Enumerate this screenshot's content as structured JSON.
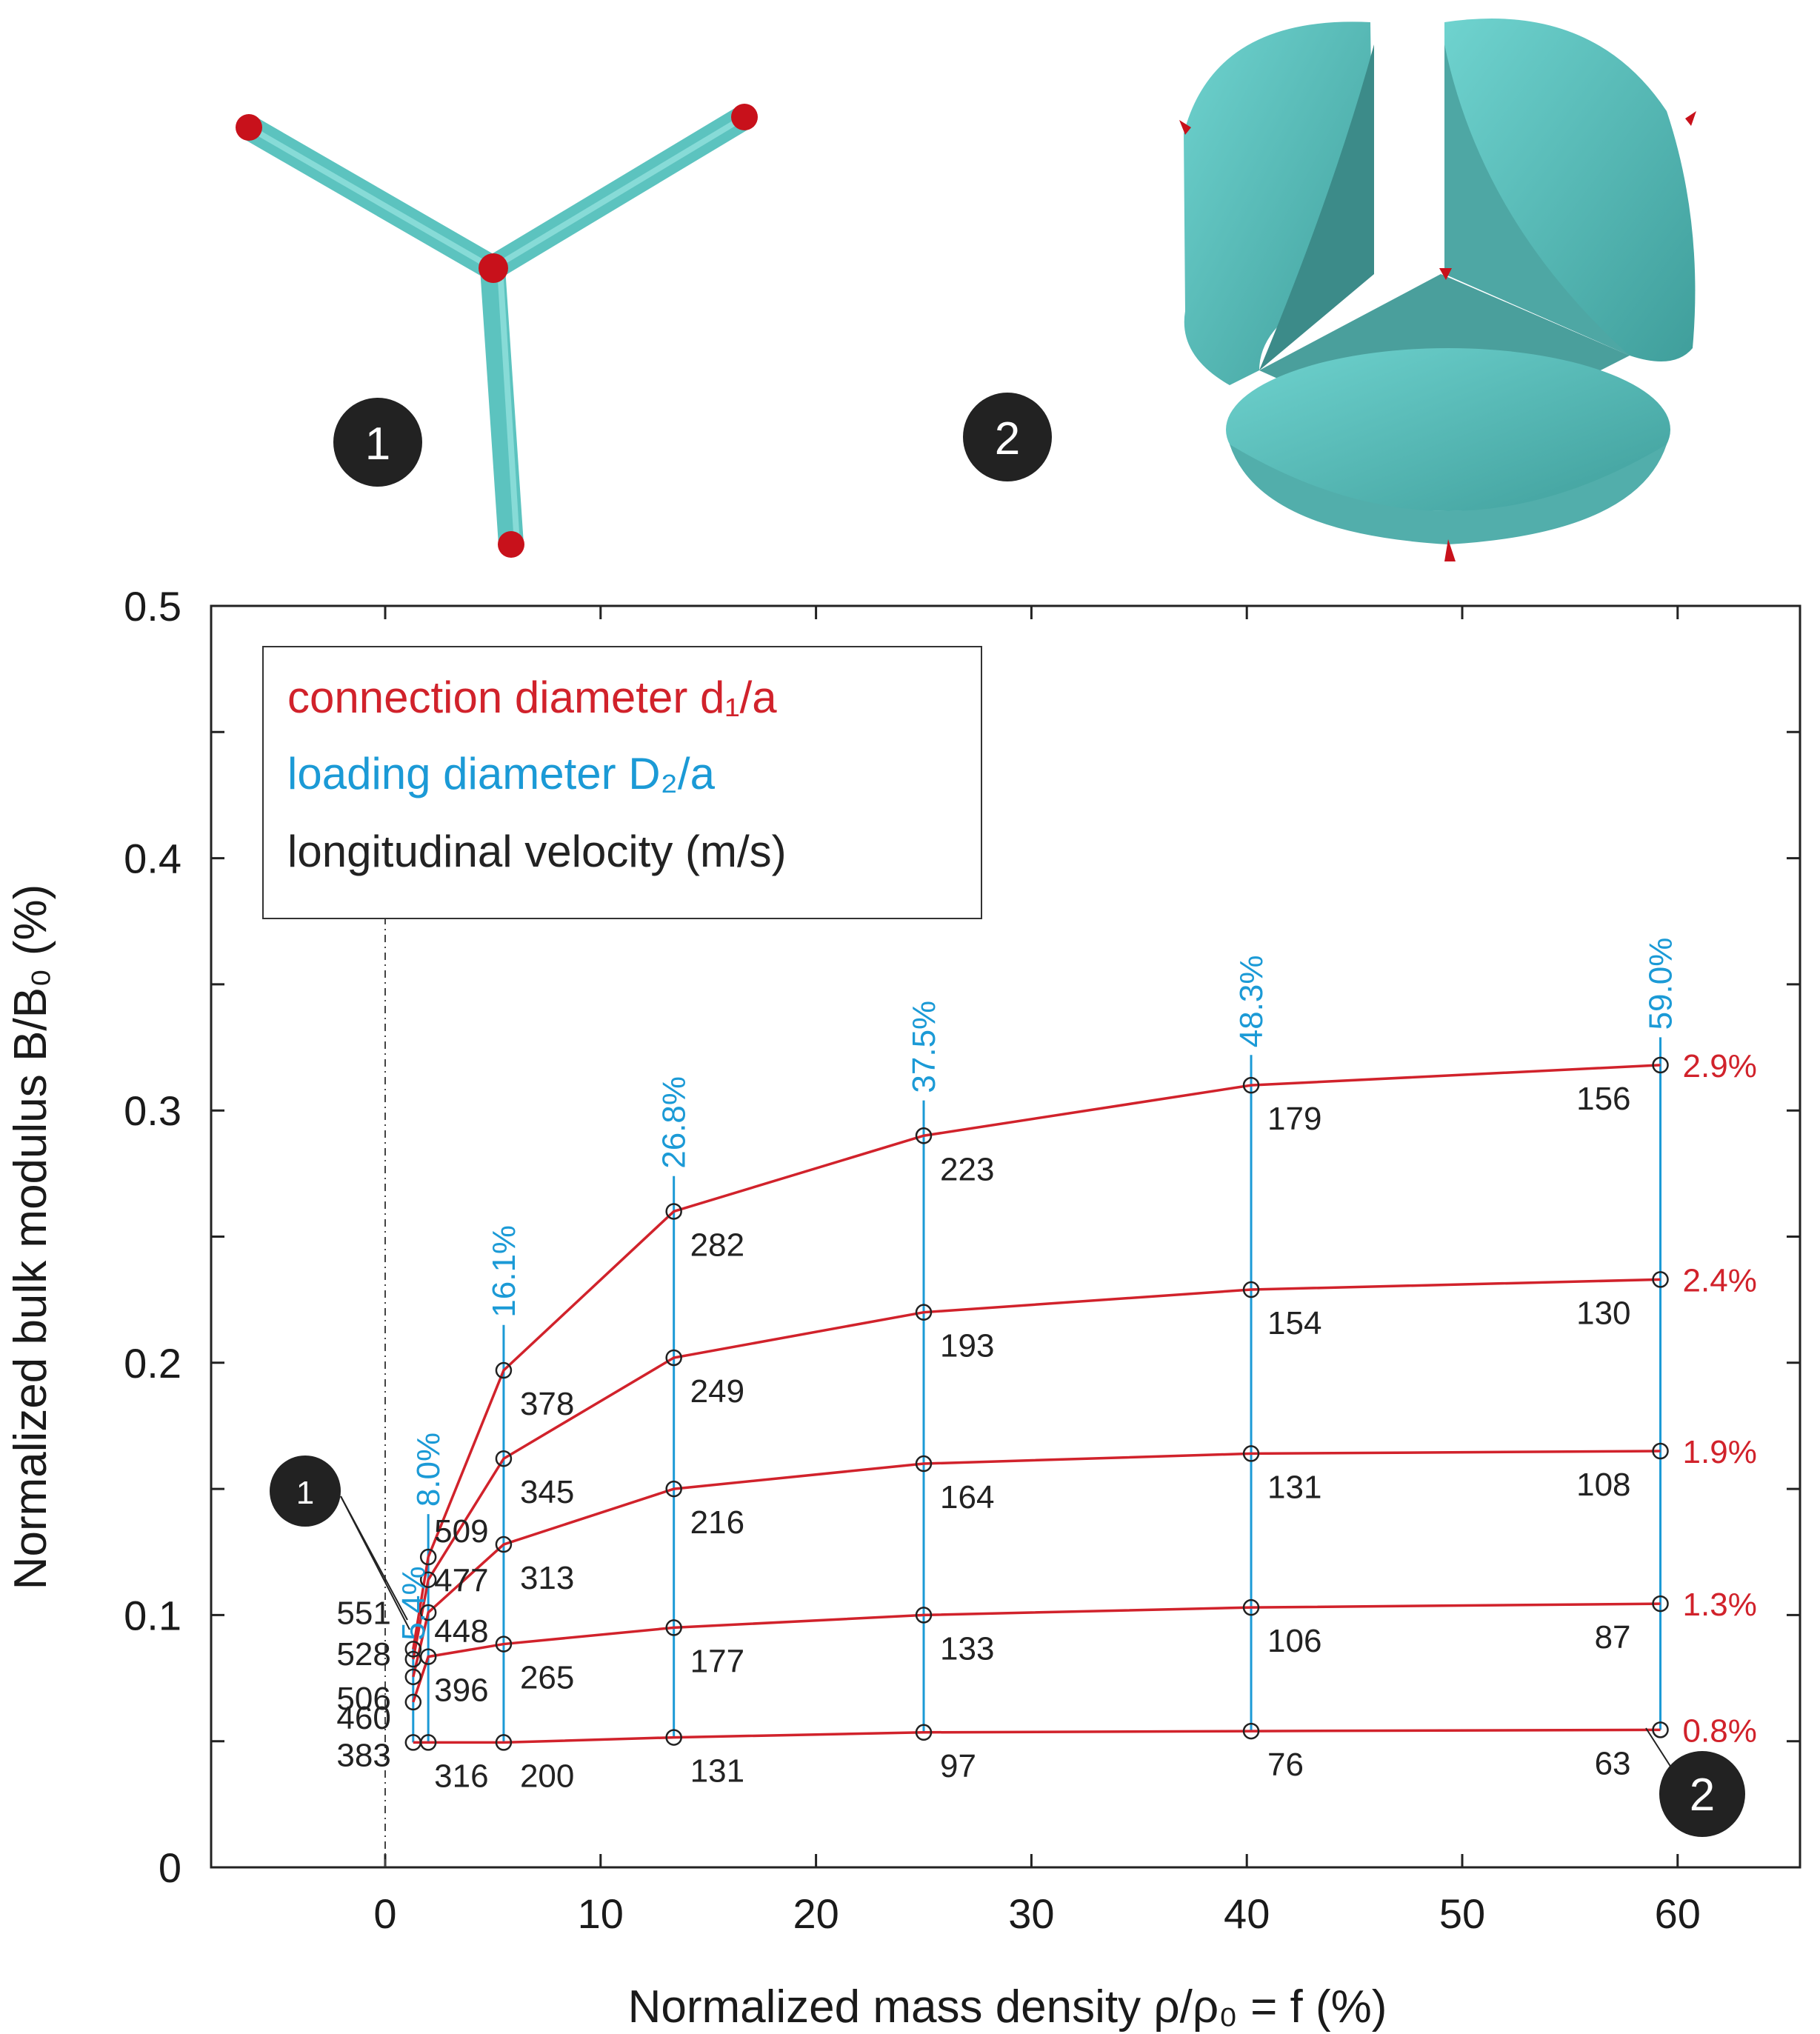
{
  "chart_data": {
    "type": "line",
    "xlabel": "Normalized mass density ρ/ρ₀ = f (%)",
    "ylabel": "Normalized bulk modulus  B/B₀ (%)",
    "xlim": [
      -8,
      66
    ],
    "ylim": [
      0,
      0.5
    ],
    "x_ticks": [
      "0",
      "10",
      "20",
      "30",
      "40",
      "50",
      "60"
    ],
    "y_ticks": [
      "0",
      "0.1",
      "0.2",
      "0.3",
      "0.4",
      "0.5"
    ],
    "legend": {
      "position": "top-left",
      "entries": [
        {
          "text": "connection diameter d₁/a",
          "color": "#d1222b"
        },
        {
          "text": "loading diameter D₂/a",
          "color": "#1b9ad6"
        },
        {
          "text": "longitudinal velocity (m/s)",
          "color": "#222222"
        }
      ]
    },
    "loading_diameters": [
      {
        "label": "5.4%",
        "x": 1.3,
        "y_top": 0.087
      },
      {
        "label": "8.0%",
        "x": 2.0,
        "y_top": 0.14
      },
      {
        "label": "16.1%",
        "x": 5.5,
        "y_top": 0.215
      },
      {
        "label": "26.8%",
        "x": 13.4,
        "y_top": 0.274
      },
      {
        "label": "37.5%",
        "x": 25.0,
        "y_top": 0.304
      },
      {
        "label": "48.3%",
        "x": 40.2,
        "y_top": 0.322
      },
      {
        "label": "59.0%",
        "x": 59.2,
        "y_top": 0.329
      }
    ],
    "x": [
      1.3,
      2.0,
      5.5,
      13.4,
      25.0,
      40.2,
      59.2
    ],
    "series": [
      {
        "name": "2.9%",
        "y": [
          0.0865,
          0.123,
          0.197,
          0.26,
          0.29,
          0.31,
          0.318
        ],
        "velocity": [
          "551",
          "509",
          "378",
          "282",
          "223",
          "179",
          "156"
        ]
      },
      {
        "name": "2.4%",
        "y": [
          0.0825,
          0.114,
          0.162,
          0.202,
          0.22,
          0.229,
          0.233
        ],
        "velocity": [
          "528",
          "477",
          "345",
          "249",
          "193",
          "154",
          "130"
        ]
      },
      {
        "name": "1.9%",
        "y": [
          0.0755,
          0.101,
          0.128,
          0.15,
          0.16,
          0.164,
          0.165
        ],
        "velocity": [
          "506",
          "448",
          "313",
          "216",
          "164",
          "131",
          "108"
        ]
      },
      {
        "name": "1.3%",
        "y": [
          0.0655,
          0.0835,
          0.0885,
          0.095,
          0.1,
          0.103,
          0.1045
        ],
        "velocity": [
          "460",
          "396",
          "265",
          "177",
          "133",
          "106",
          "87"
        ]
      },
      {
        "name": "0.8%",
        "y": [
          0.0495,
          0.0495,
          0.0495,
          0.0515,
          0.0535,
          0.054,
          0.0545
        ],
        "velocity": [
          "383",
          "316",
          "200",
          "131",
          "97",
          "76",
          "63"
        ]
      }
    ],
    "structure_badges": [
      "1",
      "2"
    ]
  }
}
